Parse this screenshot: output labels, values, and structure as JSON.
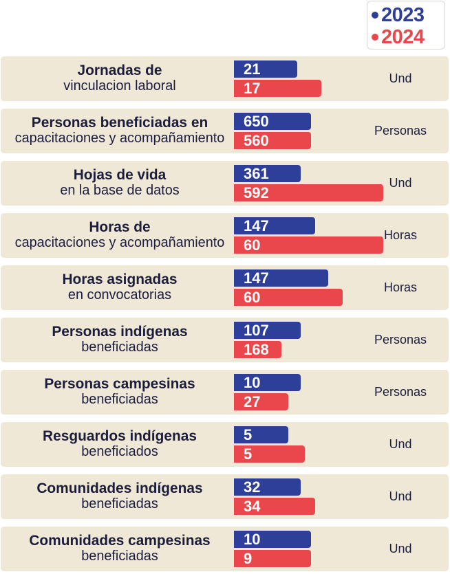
{
  "colors": {
    "y2023": "#2e3f99",
    "y2024": "#e9474b",
    "row_bg": "#efe8d7",
    "text": "#1c1c3c"
  },
  "legend": [
    {
      "label": "2023",
      "color": "#2e3f99"
    },
    {
      "label": "2024",
      "color": "#e9474b"
    }
  ],
  "chart_data": {
    "type": "bar",
    "orientation": "horizontal",
    "series_names": [
      "2023",
      "2024"
    ],
    "rows": [
      {
        "title_bold": "Jornadas de",
        "title_regular": "vinculacion laboral",
        "v2023": "21",
        "v2024": "17",
        "unit": "Und"
      },
      {
        "title_bold": "Personas beneficiadas en",
        "title_regular": "capacitaciones y acompañamiento",
        "v2023": "650",
        "v2024": "560",
        "unit": "Personas"
      },
      {
        "title_bold": "Hojas de vida",
        "title_regular": "en la base de datos",
        "v2023": "361",
        "v2024": "592",
        "unit": "Und"
      },
      {
        "title_bold": "Horas de",
        "title_regular": "capacitaciones y acompañamiento",
        "v2023": "147",
        "v2024": "60",
        "unit": "Horas"
      },
      {
        "title_bold": "Horas asignadas",
        "title_regular": "en convocatorias",
        "v2023": "147",
        "v2024": "60",
        "unit": "Horas"
      },
      {
        "title_bold": "Personas indígenas",
        "title_regular": "beneficiadas",
        "v2023": "107",
        "v2024": "168",
        "unit": "Personas"
      },
      {
        "title_bold": "Personas campesinas",
        "title_regular": "beneficiadas",
        "v2023": "10",
        "v2024": "27",
        "unit": "Personas"
      },
      {
        "title_bold": "Resguardos indígenas",
        "title_regular": "beneficiados",
        "v2023": "5",
        "v2024": "5",
        "unit": "Und"
      },
      {
        "title_bold": "Comunidades indígenas",
        "title_regular": "beneficiadas",
        "v2023": "32",
        "v2024": "34",
        "unit": "Und"
      },
      {
        "title_bold": "Comunidades campesinas",
        "title_regular": "beneficiadas",
        "v2023": "10",
        "v2024": "9",
        "unit": "Und"
      }
    ]
  }
}
